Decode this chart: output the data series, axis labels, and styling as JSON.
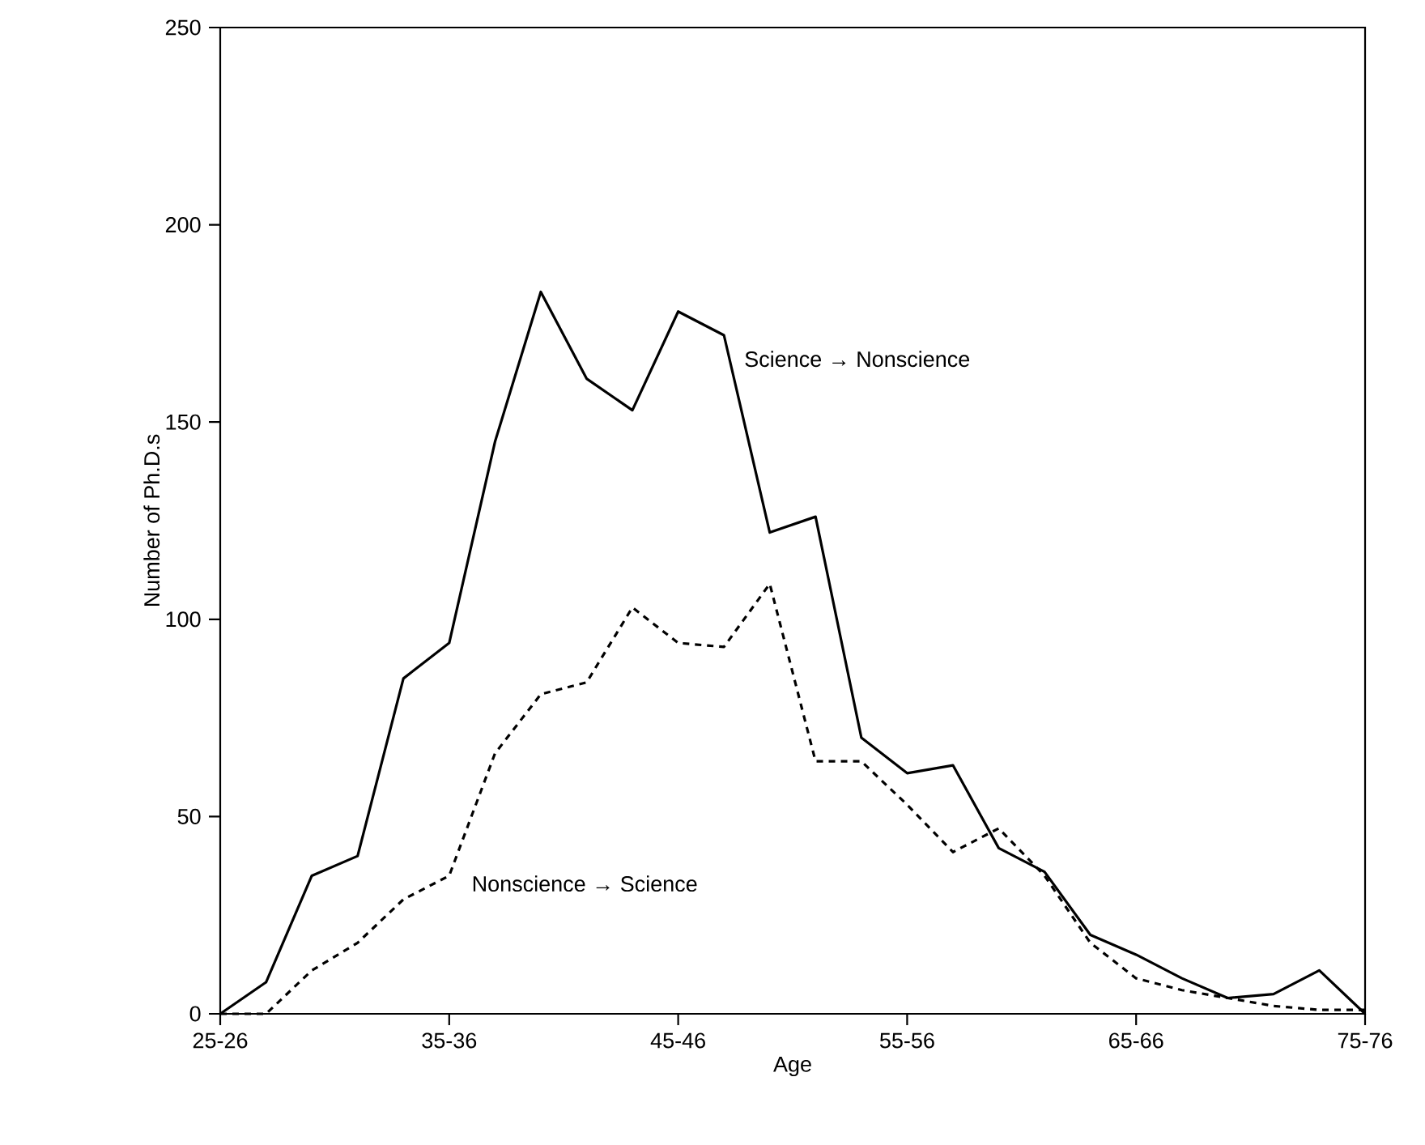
{
  "chart_data": {
    "type": "line",
    "xlabel": "Age",
    "ylabel": "Number of Ph.D.s",
    "categories": [
      "25-26",
      null,
      null,
      null,
      null,
      "35-36",
      null,
      null,
      null,
      null,
      "45-46",
      null,
      null,
      null,
      null,
      "55-56",
      null,
      null,
      null,
      null,
      "65-66",
      null,
      null,
      null,
      null,
      "75-76"
    ],
    "ylim": [
      0,
      250
    ],
    "yticks": [
      0,
      50,
      100,
      150,
      200,
      250
    ],
    "marker": "none",
    "series": [
      {
        "name": "Science → Nonscience",
        "color": "#000000",
        "line_style": "solid",
        "values": [
          0,
          8,
          35,
          40,
          85,
          94,
          145,
          183,
          161,
          153,
          178,
          172,
          122,
          126,
          70,
          61,
          63,
          42,
          36,
          20,
          15,
          9,
          4,
          5,
          11,
          0
        ]
      },
      {
        "name": "Nonscience → Science",
        "color": "#000000",
        "line_style": "dashed",
        "values": [
          0,
          0,
          11,
          18,
          29,
          35,
          66,
          81,
          84,
          103,
          94,
          93,
          109,
          64,
          64,
          53,
          41,
          47,
          35,
          18,
          9,
          6,
          4,
          2,
          1,
          1
        ]
      }
    ]
  }
}
